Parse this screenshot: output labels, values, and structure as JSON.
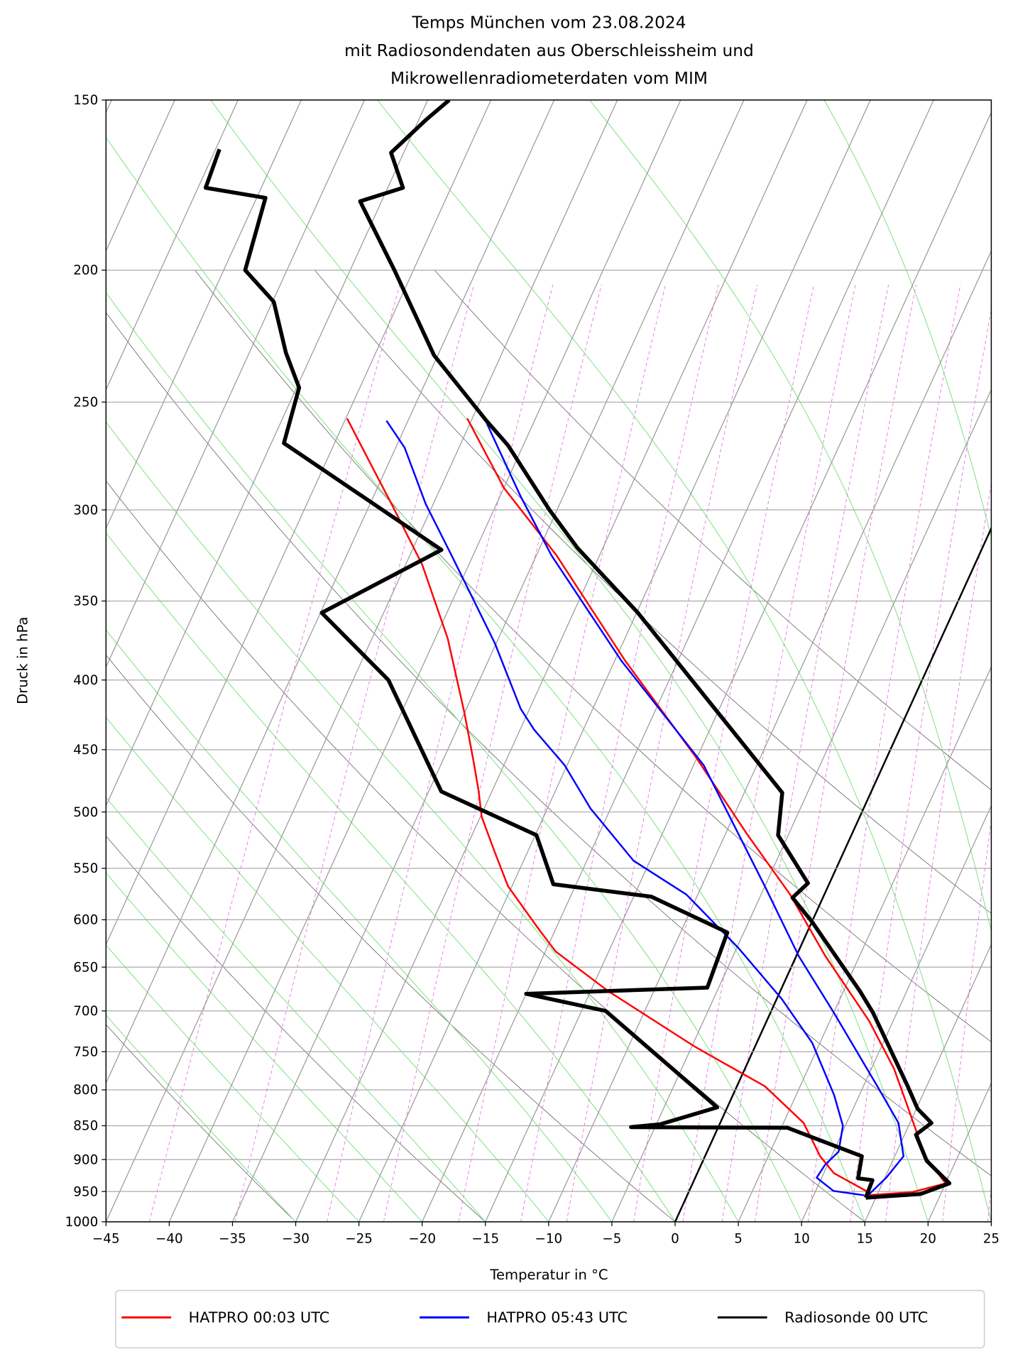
{
  "chart_data": {
    "type": "skewt",
    "title": [
      "Temps München vom 23.08.2024",
      "mit Radiosondendaten aus Oberschleissheim und",
      "Mikrowellenradiometerdaten vom MIM"
    ],
    "xlabel": "Temperatur in °C",
    "ylabel": "Druck in hPa",
    "xlim": [
      -45,
      25
    ],
    "xticks": [
      {
        "value": -45,
        "label": "−45"
      },
      {
        "value": -40,
        "label": "−40"
      },
      {
        "value": -35,
        "label": "−35"
      },
      {
        "value": -30,
        "label": "−30"
      },
      {
        "value": -25,
        "label": "−25"
      },
      {
        "value": -20,
        "label": "−20"
      },
      {
        "value": -15,
        "label": "−15"
      },
      {
        "value": -10,
        "label": "−10"
      },
      {
        "value": -5,
        "label": "−5"
      },
      0,
      5,
      10,
      15,
      20,
      25
    ],
    "ylim": [
      1000,
      150
    ],
    "yscale": "log",
    "yticks": [
      1000,
      950,
      900,
      850,
      800,
      750,
      700,
      650,
      600,
      550,
      500,
      450,
      400,
      350,
      300,
      250,
      200,
      150
    ],
    "grid": true,
    "series": [
      {
        "name": "HATPRO 00:03 UTC",
        "color": "#ff0000",
        "linewidth": 2,
        "temperature": {
          "pressure": [
            956,
            951,
            937,
            895,
            831,
            772,
            712,
            638,
            575,
            519,
            455,
            387,
            324,
            289,
            257
          ],
          "values": [
            14.3,
            17.7,
            20.0,
            17.4,
            14.6,
            11.8,
            8.1,
            2.3,
            -2.7,
            -8.3,
            -15.2,
            -24.2,
            -33.4,
            -40.0,
            -45.4
          ]
        },
        "dewpoint": {
          "pressure": [
            951,
            921,
            895,
            846,
            795,
            744,
            677,
            633,
            610,
            567,
            535,
            504,
            482,
            458,
            423,
            373,
            329,
            297,
            280,
            257
          ],
          "values": [
            14.2,
            10.8,
            9.1,
            6.6,
            2.2,
            -4.7,
            -13.6,
            -19.2,
            -21.3,
            -25.3,
            -27.6,
            -29.9,
            -31.1,
            -32.6,
            -35.0,
            -39.0,
            -43.7,
            -48.3,
            -51.0,
            -54.9
          ]
        }
      },
      {
        "name": "HATPRO 05:43 UTC",
        "color": "#0000ff",
        "linewidth": 2,
        "temperature": {
          "pressure": [
            956,
            928,
            895,
            846,
            795,
            702,
            638,
            567,
            462,
            387,
            324,
            293,
            259
          ],
          "values": [
            14.3,
            15.1,
            15.7,
            14.1,
            11.1,
            5.0,
            0.2,
            -5.0,
            -14.2,
            -24.5,
            -33.8,
            -38.4,
            -43.7
          ]
        },
        "dewpoint": {
          "pressure": [
            956,
            949,
            928,
            908,
            888,
            850,
            807,
            739,
            686,
            629,
            575,
            543,
            497,
            462,
            435,
            420,
            376,
            349,
            324,
            297,
            270,
            258
          ],
          "values": [
            14.0,
            11.4,
            9.6,
            9.8,
            10.4,
            9.8,
            8.0,
            4.4,
            0.4,
            -4.9,
            -10.9,
            -16.3,
            -21.6,
            -25.2,
            -28.9,
            -30.7,
            -35.1,
            -38.4,
            -41.7,
            -45.6,
            -49.3,
            -51.7
          ]
        }
      },
      {
        "name": "Radiosonde 00 UTC",
        "color": "#000000",
        "linewidth": 4.5,
        "temperature": {
          "pressure": [
            960,
            954,
            937,
            902,
            863,
            846,
            826,
            795,
            702,
            677,
            602,
            578,
            564,
            520,
            484,
            357,
            320,
            300,
            269,
            258,
            231,
            200,
            178,
            174,
            164,
            155,
            150
          ],
          "values": [
            14.2,
            18.4,
            20.3,
            17.7,
            15.9,
            16.7,
            15.1,
            13.5,
            8.1,
            6.3,
            0,
            -2.4,
            -1.7,
            -5.8,
            -7.0,
            -24.9,
            -32.0,
            -35.6,
            -41.2,
            -43.8,
            -50.3,
            -56.5,
            -61.7,
            -58.8,
            -61.0,
            -59.4,
            -58.3
          ]
        },
        "dewpoint": {
          "pressure": [
            960,
            932,
            929,
            895,
            853,
            852,
            848,
            824,
            700,
            680,
            673,
            613,
            577,
            565,
            520,
            483,
            400,
            357,
            321,
            268,
            244,
            230,
            211,
            200,
            177,
            174,
            163
          ],
          "values": [
            14.2,
            14.1,
            12.9,
            12.4,
            5.5,
            -6.9,
            -4.7,
            -0.8,
            -13.1,
            -20.0,
            -5.9,
            -6.3,
            -13.6,
            -21.8,
            -24.9,
            -34.0,
            -42.2,
            -49.9,
            -42.7,
            -59.0,
            -59.8,
            -62.1,
            -64.9,
            -68.3,
            -69.3,
            -74.4,
            -74.7
          ]
        }
      }
    ]
  }
}
